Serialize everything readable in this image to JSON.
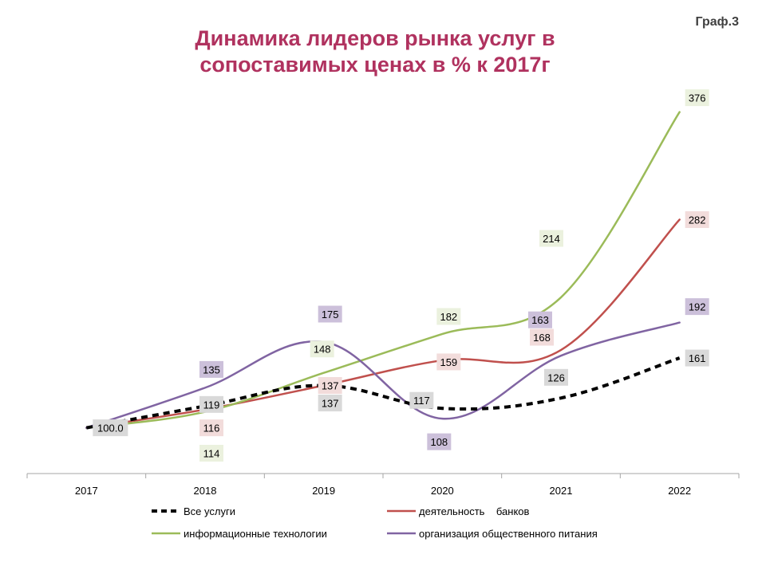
{
  "title_line1": "Динамика лидеров рынка услуг в",
  "title_line2": "сопоставимых ценах в % к 2017г",
  "graf_label": "Граф.3",
  "chart_data": {
    "type": "line",
    "title": "Динамика лидеров рынка услуг в сопоставимых ценах в % к 2017г",
    "categories": [
      "2017",
      "2018",
      "2019",
      "2020",
      "2021",
      "2022"
    ],
    "ylim": [
      60,
      400
    ],
    "grid": false,
    "legend_position": "bottom",
    "series": [
      {
        "name": "Все услуги",
        "color": "#000000",
        "dashed": true,
        "values": [
          100.0,
          119,
          137,
          117,
          126,
          161
        ],
        "labels": [
          "100.0",
          "119",
          "137",
          "117",
          "126",
          "161"
        ],
        "label_bg": "#d9d9d9"
      },
      {
        "name": "деятельность    банков",
        "color": "#c0504d",
        "dashed": false,
        "values": [
          100,
          116,
          137,
          159,
          168,
          282
        ],
        "labels": [
          "",
          "116",
          "137",
          "159",
          "168",
          "282"
        ],
        "label_bg": "#f2dcdb"
      },
      {
        "name": "информационные технологии",
        "color": "#9bbb59",
        "dashed": false,
        "values": [
          100,
          114,
          148,
          182,
          214,
          376
        ],
        "labels": [
          "",
          "114",
          "148",
          "182",
          "214",
          "376"
        ],
        "label_bg": "#ebf1de"
      },
      {
        "name": "организация общественного питания",
        "color": "#8064a2",
        "dashed": false,
        "values": [
          100,
          135,
          175,
          108,
          163,
          192
        ],
        "labels": [
          "",
          "135",
          "175",
          "108",
          "163",
          "192"
        ],
        "label_bg": "#ccc0da"
      }
    ]
  }
}
